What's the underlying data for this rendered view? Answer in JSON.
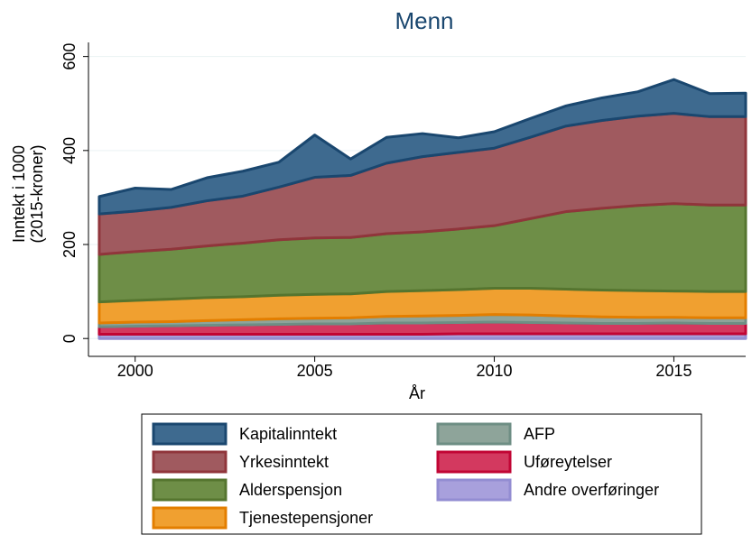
{
  "chart_data": {
    "type": "stacked_area",
    "title": "Menn",
    "y_label": [
      "Inntekt i 1000",
      "(2015-kroner)"
    ],
    "x_label": "År",
    "x": [
      1999,
      2000,
      2001,
      2002,
      2003,
      2004,
      2005,
      2006,
      2007,
      2008,
      2009,
      2010,
      2011,
      2012,
      2013,
      2014,
      2015,
      2016,
      2017
    ],
    "xlim": [
      1998.7,
      2017
    ],
    "xticks": [
      2000,
      2005,
      2010,
      2015
    ],
    "ylim": [
      -38,
      630
    ],
    "yticks": [
      0,
      200,
      400,
      600
    ],
    "grid": true,
    "series": [
      {
        "name": "Kapitalinntekt",
        "color": "#3e6a8f",
        "line_color": "#1a476f",
        "values": [
          37,
          49,
          38,
          49,
          53,
          53,
          90,
          35,
          55,
          49,
          31,
          35,
          40,
          43,
          48,
          52,
          72,
          49,
          50
        ]
      },
      {
        "name": "Yrkesinntekt",
        "color": "#a05a5f",
        "line_color": "#90353b",
        "values": [
          86,
          86,
          89,
          96,
          100,
          112,
          129,
          132,
          150,
          160,
          163,
          165,
          173,
          182,
          187,
          190,
          192,
          188,
          188
        ]
      },
      {
        "name": "Alderspensjon",
        "color": "#6e8e47",
        "line_color": "#55752f",
        "values": [
          101,
          104,
          106,
          110,
          114,
          118,
          120,
          120,
          123,
          125,
          129,
          133,
          148,
          165,
          174,
          181,
          186,
          184,
          184
        ]
      },
      {
        "name": "Tjenestepensjoner",
        "color": "#f0a030",
        "line_color": "#e37e00",
        "values": [
          45,
          46,
          48,
          49,
          49,
          50,
          51,
          51,
          53,
          54,
          55,
          56,
          57,
          57,
          57,
          57,
          56,
          56,
          56
        ]
      },
      {
        "name": "AFP",
        "color": "#8ea49a",
        "line_color": "#6e8e84",
        "values": [
          8,
          9,
          9,
          10,
          11,
          12,
          12,
          13,
          14,
          15,
          15,
          16,
          16,
          15,
          14,
          13,
          12,
          12,
          12
        ]
      },
      {
        "name": "Uføreytelser",
        "color": "#d3395f",
        "line_color": "#c10534",
        "values": [
          16,
          17,
          18,
          19,
          20,
          21,
          22,
          22,
          24,
          24,
          24,
          25,
          24,
          23,
          22,
          22,
          23,
          22,
          22
        ]
      },
      {
        "name": "Andre overføringer",
        "color": "#a8a0dc",
        "line_color": "#938dd2",
        "values": [
          9,
          9,
          9,
          9,
          9,
          9,
          9,
          9,
          9,
          9,
          10,
          10,
          10,
          10,
          10,
          10,
          10,
          10,
          10
        ]
      }
    ]
  }
}
